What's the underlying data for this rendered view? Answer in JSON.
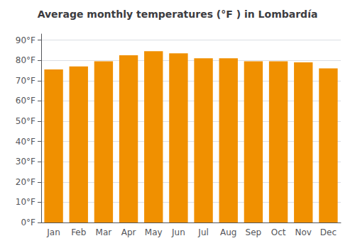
{
  "chart_data": {
    "type": "bar",
    "title": "Average monthly temperatures (°F ) in Lombardía",
    "categories": [
      "Jan",
      "Feb",
      "Mar",
      "Apr",
      "May",
      "Jun",
      "Jul",
      "Aug",
      "Sep",
      "Oct",
      "Nov",
      "Dec"
    ],
    "values": [
      75.5,
      77.0,
      79.5,
      82.5,
      84.5,
      83.5,
      81.0,
      81.0,
      79.5,
      79.5,
      79.0,
      76.0
    ],
    "color": "#F09000",
    "ylim": [
      0,
      93
    ],
    "yticks": [
      {
        "value": 0,
        "label": "0°F"
      },
      {
        "value": 10,
        "label": "10°F"
      },
      {
        "value": 20,
        "label": "20°F"
      },
      {
        "value": 30,
        "label": "30°F"
      },
      {
        "value": 40,
        "label": "40°F"
      },
      {
        "value": 50,
        "label": "50°F"
      },
      {
        "value": 60,
        "label": "60°F"
      },
      {
        "value": 70,
        "label": "70°F"
      },
      {
        "value": 80,
        "label": "80°F"
      },
      {
        "value": 90,
        "label": "90°F"
      }
    ],
    "grid": true
  }
}
